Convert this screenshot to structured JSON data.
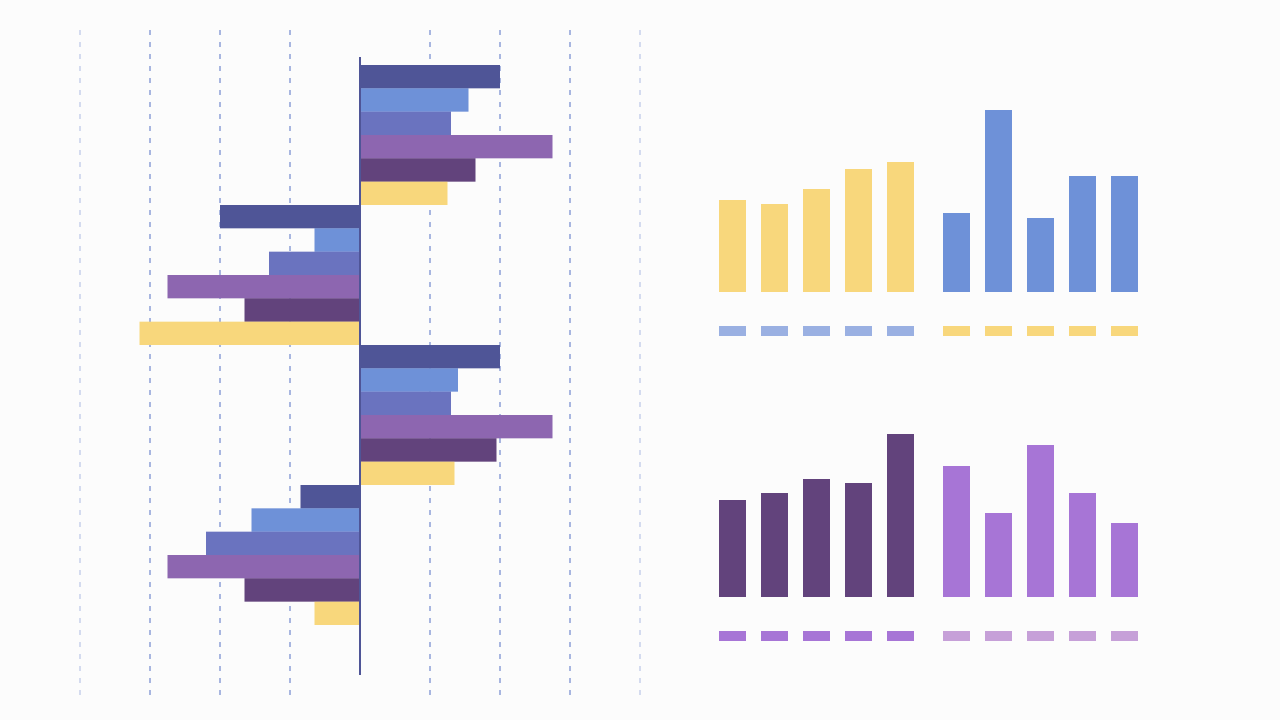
{
  "chart_data": [
    {
      "type": "hbar",
      "orientation": "horizontal",
      "grid": true,
      "categories": [
        null,
        null,
        null,
        null
      ],
      "xlim": [
        -4,
        4
      ],
      "xticks": [
        -4,
        -3,
        -2,
        -1,
        0,
        1,
        2,
        3,
        4
      ],
      "series": [
        {
          "color": "#4f5597",
          "values": [
            2.0,
            -2.0,
            2.0,
            -0.85
          ]
        },
        {
          "color": "#6e91d8",
          "values": [
            1.55,
            -0.65,
            1.4,
            -1.55
          ]
        },
        {
          "color": "#6a73bf",
          "values": [
            1.3,
            -1.3,
            1.3,
            -2.2
          ]
        },
        {
          "color": "#8d66b0",
          "values": [
            2.75,
            -2.75,
            2.75,
            -2.75
          ]
        },
        {
          "color": "#62437c",
          "values": [
            1.65,
            -1.65,
            1.95,
            -1.65
          ]
        },
        {
          "color": "#f8d77c",
          "values": [
            1.25,
            -3.15,
            1.35,
            -0.65
          ]
        }
      ]
    },
    {
      "type": "bar",
      "grid": false,
      "ylim": [
        0,
        200
      ],
      "series": [
        {
          "color": "#f8d77c",
          "values": [
            92,
            88,
            103,
            123,
            130
          ]
        },
        {
          "color": "#6e91d8",
          "values": [
            79,
            182,
            74,
            116,
            116
          ]
        }
      ]
    },
    {
      "type": "bar",
      "grid": false,
      "ylim": [
        0,
        200
      ],
      "series": [
        {
          "color": "#62437c",
          "values": [
            97,
            104,
            118,
            114,
            163
          ]
        },
        {
          "color": "#a775d6",
          "values": [
            131,
            84,
            152,
            104,
            74
          ]
        }
      ]
    }
  ]
}
